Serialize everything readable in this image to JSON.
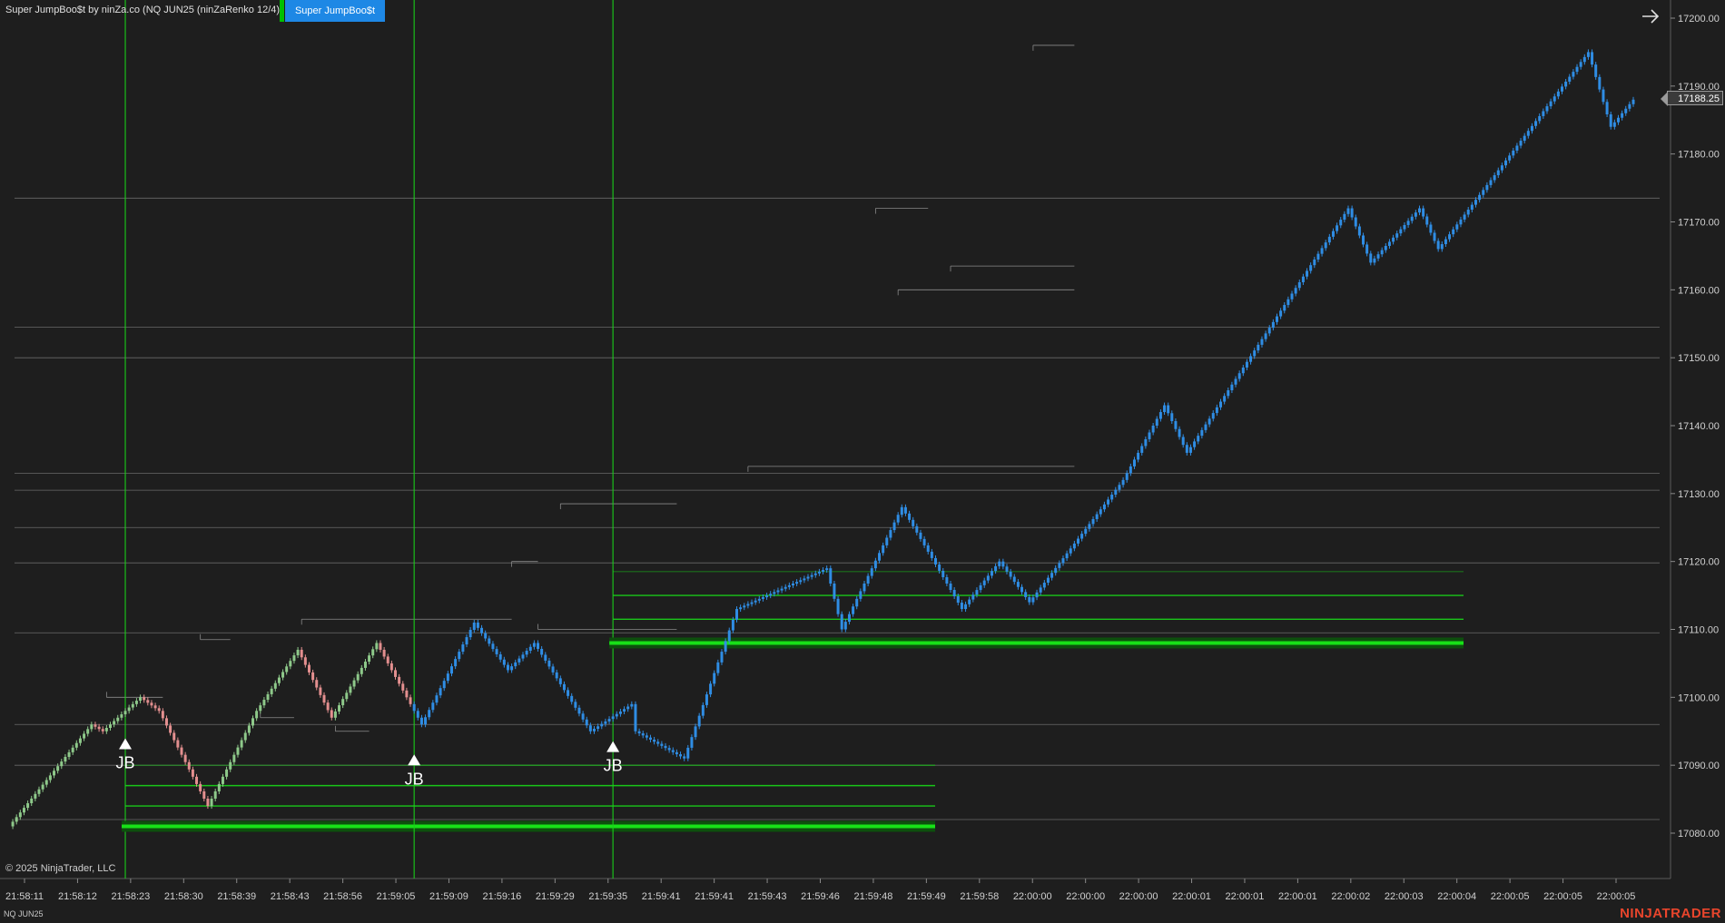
{
  "header": {
    "indicator_label": "Super JumpBoo$t by ninZa.co (NQ JUN25 (ninZaRenko 12/4))",
    "button_label": "Super JumpBoo$t"
  },
  "footer": {
    "copyright": "© 2025 NinjaTrader, LLC",
    "instrument": "NQ JUN25",
    "brand": "NINJATRADER"
  },
  "current_price": "17188.25",
  "signal_label": "JB",
  "colors": {
    "background": "#1e1e1e",
    "up_bar": "#2f8de4",
    "down_bar": "#2f8de4",
    "early_up_bar": "#8ec98a",
    "early_down_bar": "#e38f8f",
    "signal_line": "#19d019",
    "level_line": "#777777",
    "accent_button": "#1e88e5",
    "brand": "#e8452c"
  },
  "chart_data": {
    "type": "candlestick",
    "ylim": [
      17076,
      17202
    ],
    "y_ticks": [
      17080,
      17090,
      17100,
      17110,
      17120,
      17130,
      17140,
      17150,
      17160,
      17170,
      17180,
      17190,
      17200
    ],
    "x_tick_labels": [
      "21:58:11",
      "21:58:12",
      "21:58:23",
      "21:58:30",
      "21:58:39",
      "21:58:43",
      "21:58:56",
      "21:59:05",
      "21:59:09",
      "21:59:16",
      "21:59:29",
      "21:59:35",
      "21:59:41",
      "21:59:41",
      "21:59:43",
      "21:59:46",
      "21:59:48",
      "21:59:49",
      "21:59:58",
      "22:00:00",
      "22:00:00",
      "22:00:00",
      "22:00:01",
      "22:00:01",
      "22:00:01",
      "22:00:02",
      "22:00:03",
      "22:00:04",
      "22:00:05",
      "22:00:05",
      "22:00:05"
    ],
    "bar_count": 300,
    "brick_size": 1.0,
    "price_path": [
      [
        0,
        17081
      ],
      [
        22,
        17096
      ],
      [
        25,
        17095
      ],
      [
        35,
        17100
      ],
      [
        40,
        17098
      ],
      [
        53,
        17084
      ],
      [
        66,
        17098
      ],
      [
        77,
        17107
      ],
      [
        86,
        17097
      ],
      [
        98,
        17108
      ],
      [
        110,
        17096
      ],
      [
        124,
        17111
      ],
      [
        133,
        17104
      ],
      [
        140,
        17108
      ],
      [
        155,
        17095
      ],
      [
        166,
        17099
      ],
      [
        167,
        17095
      ],
      [
        180,
        17091
      ],
      [
        194,
        17113
      ],
      [
        218,
        17119
      ],
      [
        222,
        17110
      ],
      [
        238,
        17128
      ],
      [
        254,
        17113
      ],
      [
        264,
        17120
      ],
      [
        272,
        17114
      ],
      [
        297,
        17132
      ],
      [
        308,
        17143
      ],
      [
        314,
        17136
      ],
      [
        357,
        17172
      ],
      [
        363,
        17164
      ],
      [
        376,
        17172
      ],
      [
        381,
        17166
      ],
      [
        421,
        17195
      ],
      [
        427,
        17184
      ],
      [
        433,
        17188
      ]
    ],
    "early_bar_end": 107,
    "jb_signals": [
      {
        "x": 30,
        "label": "JB",
        "stop_levels": [
          17090,
          17087,
          17084,
          17081
        ]
      },
      {
        "x": 107,
        "label": "JB",
        "stop_levels": [
          17090
        ]
      },
      {
        "x": 160,
        "label": "JB",
        "stop_levels": [
          17118.5,
          17115,
          17111.5,
          17108
        ]
      }
    ],
    "horizontal_levels": [
      17173.5,
      17154.5,
      17150,
      17133,
      17130.5,
      17125,
      17119.8,
      17109.5,
      17096,
      17090,
      17082
    ],
    "swing_boxes": [
      {
        "x0": 25,
        "x1": 40,
        "y": 17100
      },
      {
        "x0": 50,
        "x1": 58,
        "y": 17108.5
      },
      {
        "x0": 66,
        "x1": 75,
        "y": 17097
      },
      {
        "x0": 77,
        "x1": 133,
        "y": 17111.5
      },
      {
        "x0": 86,
        "x1": 95,
        "y": 17095
      },
      {
        "x0": 133,
        "x1": 140,
        "y": 17120
      },
      {
        "x0": 140,
        "x1": 177,
        "y": 17110
      },
      {
        "x0": 146,
        "x1": 177,
        "y": 17128.5
      },
      {
        "x0": 230,
        "x1": 244,
        "y": 17172
      },
      {
        "x0": 236,
        "x1": 283,
        "y": 17160
      },
      {
        "x0": 250,
        "x1": 283,
        "y": 17163.5
      },
      {
        "x0": 272,
        "x1": 283,
        "y": 17196
      },
      {
        "x0": 196,
        "x1": 283,
        "y": 17134
      }
    ]
  }
}
